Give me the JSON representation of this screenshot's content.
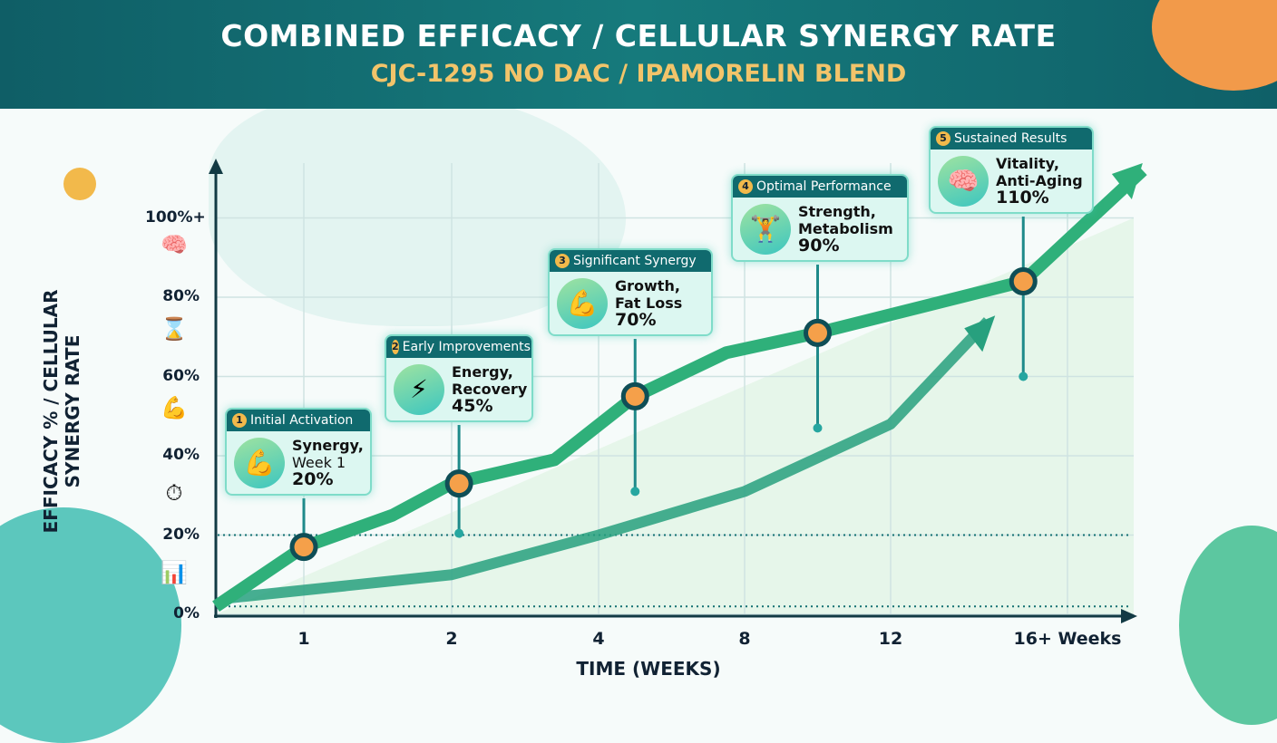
{
  "header": {
    "title": "COMBINED EFFICACY / CELLULAR SYNERGY RATE",
    "subtitle": "CJC-1295 NO DAC / IPAMORELIN BLEND"
  },
  "colors": {
    "header_bg": "#137072",
    "subtitle": "#f2c46a",
    "main_line": "#2fb07a",
    "marker": "#f5a04a",
    "callout_header": "#106a6e",
    "callout_bg": "#dcf7f1"
  },
  "side_icons": [
    "brain-icon",
    "waist-icon",
    "flexed-arm-icon",
    "clock-icon",
    "chart-growth-icon"
  ],
  "chart_data": {
    "type": "line",
    "title": "COMBINED EFFICACY / CELLULAR SYNERGY RATE",
    "subtitle": "CJC-1295 NO DAC / IPAMORELIN BLEND",
    "xlabel": "TIME (WEEKS)",
    "ylabel": "EFFICACY % / CELLULAR SYNERGY RATE",
    "x_ticks": [
      "1",
      "2",
      "4",
      "8",
      "12",
      "16+ Weeks"
    ],
    "x_tick_weeks": [
      1,
      2,
      4,
      8,
      12,
      16
    ],
    "y_ticks": [
      "0%",
      "20%",
      "40%",
      "60%",
      "80%",
      "100%+"
    ],
    "y_tick_values": [
      0,
      20,
      40,
      60,
      80,
      100
    ],
    "ylim": [
      0,
      110
    ],
    "grid": true,
    "reference_lines": [
      20,
      2
    ],
    "series": [
      {
        "points": [
          [
            0,
            2
          ],
          [
            1,
            17
          ],
          [
            1.6,
            25
          ],
          [
            2,
            33
          ],
          [
            3.4,
            39
          ],
          [
            5,
            55
          ],
          [
            7.5,
            66
          ],
          [
            10,
            71
          ],
          [
            15,
            84
          ],
          [
            17.7,
            112
          ]
        ]
      },
      {
        "points": [
          [
            0.1,
            4
          ],
          [
            2,
            10
          ],
          [
            4,
            20
          ],
          [
            8,
            31
          ],
          [
            12,
            48
          ],
          [
            14.2,
            74
          ]
        ]
      }
    ],
    "milestones": [
      {
        "num": "1",
        "header": "Initial Activation",
        "line1": "Synergy,",
        "line2": "Week 1",
        "value": "20%",
        "icon": "flexed-arm-icon",
        "week": 1,
        "y": 17
      },
      {
        "num": "2",
        "header": "Early Improvements",
        "line1": "Energy,",
        "line2": "Recovery",
        "value": "45%",
        "icon": "lightning-icon",
        "week": 2.1,
        "y": 33
      },
      {
        "num": "3",
        "header": "Significant Synergy",
        "line1": "Growth,",
        "line2": "Fat Loss",
        "value": "70%",
        "icon": "flexed-arm-icon",
        "week": 5,
        "y": 55
      },
      {
        "num": "4",
        "header": "Optimal Performance",
        "line1": "Strength,",
        "line2": "Metabolism",
        "value": "90%",
        "icon": "dumbbell-icon",
        "week": 10,
        "y": 71
      },
      {
        "num": "5",
        "header": "Sustained Results",
        "line1": "Vitality,",
        "line2": "Anti-Aging",
        "value": "110%",
        "icon": "brain-icon",
        "week": 15,
        "y": 84
      }
    ]
  }
}
